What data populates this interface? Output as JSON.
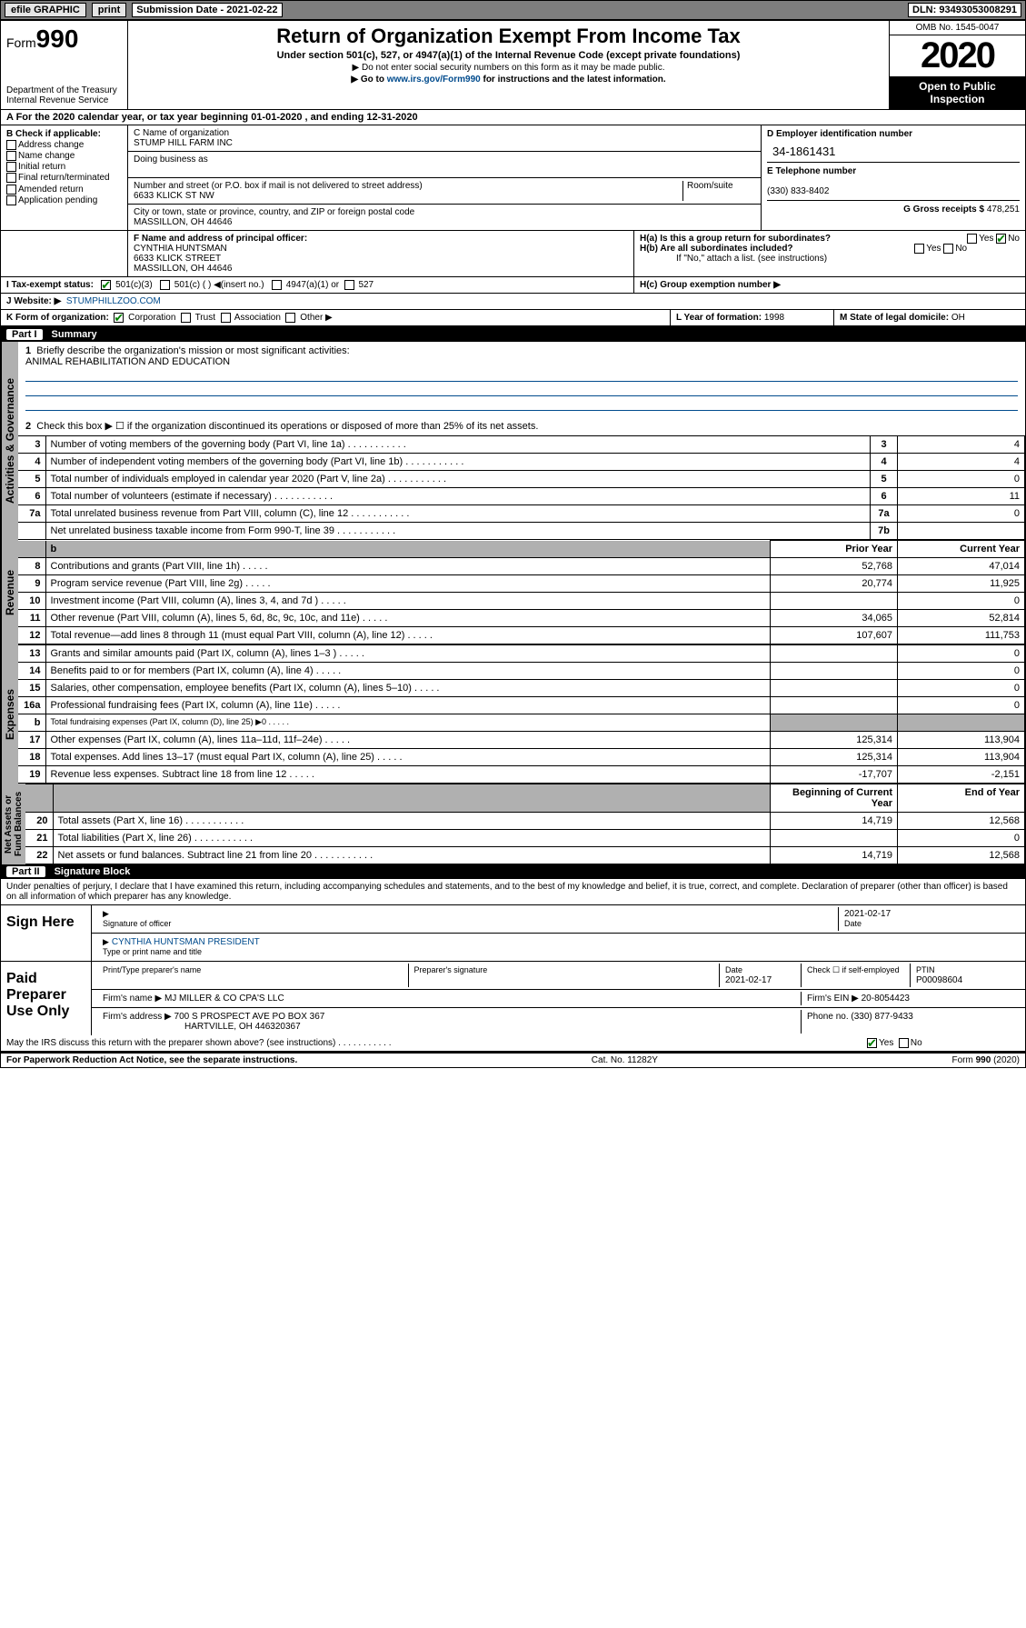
{
  "toolbar": {
    "efile": "efile GRAPHIC",
    "print": "print",
    "sub_label": "Submission Date - 2021-02-22",
    "dln": "DLN: 93493053008291"
  },
  "header": {
    "form_prefix": "Form",
    "form_no": "990",
    "title": "Return of Organization Exempt From Income Tax",
    "subtitle": "Under section 501(c), 527, or 4947(a)(1) of the Internal Revenue Code (except private foundations)",
    "note1": "▶ Do not enter social security numbers on this form as it may be made public.",
    "note2_pre": "▶ Go to ",
    "note2_link": "www.irs.gov/Form990",
    "note2_post": " for instructions and the latest information.",
    "dept": "Department of the Treasury\nInternal Revenue Service",
    "omb": "OMB No. 1545-0047",
    "year": "2020",
    "open": "Open to Public Inspection"
  },
  "row_a": "A For the 2020 calendar year, or tax year beginning 01-01-2020    , and ending 12-31-2020",
  "col_b": {
    "title": "B Check if applicable:",
    "opts": [
      "Address change",
      "Name change",
      "Initial return",
      "Final return/terminated",
      "Amended return",
      "Application pending"
    ]
  },
  "col_c": {
    "name_lbl": "C Name of organization",
    "name": "STUMP HILL FARM INC",
    "dba_lbl": "Doing business as",
    "addr_lbl": "Number and street (or P.O. box if mail is not delivered to street address)",
    "room_lbl": "Room/suite",
    "addr": "6633 KLICK ST NW",
    "city_lbl": "City or town, state or province, country, and ZIP or foreign postal code",
    "city": "MASSILLON, OH  44646"
  },
  "col_d": {
    "ein_lbl": "D Employer identification number",
    "ein": "34-1861431",
    "tel_lbl": "E Telephone number",
    "tel": "(330) 833-8402",
    "gross_lbl": "G Gross receipts $",
    "gross": "478,251"
  },
  "row_f": {
    "lbl": "F Name and address of principal officer:",
    "name": "CYNTHIA HUNTSMAN",
    "addr1": "6633 KLICK STREET",
    "addr2": "MASSILLON, OH  44646"
  },
  "row_h": {
    "ha": "H(a)  Is this a group return for subordinates?",
    "hb": "H(b)  Are all subordinates included?",
    "hb_note": "If \"No,\" attach a list. (see instructions)",
    "hc": "H(c)  Group exemption number ▶"
  },
  "row_i": {
    "lbl": "I  Tax-exempt status:",
    "a": "501(c)(3)",
    "b": "501(c) (   ) ◀(insert no.)",
    "c": "4947(a)(1) or",
    "d": "527"
  },
  "row_j": {
    "lbl": "J  Website: ▶",
    "val": "STUMPHILLZOO.COM"
  },
  "row_k": {
    "lbl": "K Form of organization:",
    "corp": "Corporation",
    "trust": "Trust",
    "assoc": "Association",
    "other": "Other ▶"
  },
  "row_l": {
    "lbl": "L Year of formation:",
    "val": "1998"
  },
  "row_m": {
    "lbl": "M State of legal domicile:",
    "val": "OH"
  },
  "part1": {
    "tag": "Part I",
    "title": "Summary"
  },
  "summary": {
    "l1": "Briefly describe the organization's mission or most significant activities:",
    "l1v": "ANIMAL REHABILITATION AND EDUCATION",
    "l2": "Check this box ▶ ☐ if the organization discontinued its operations or disposed of more than 25% of its net assets.",
    "rows": [
      {
        "n": "3",
        "t": "Number of voting members of the governing body (Part VI, line 1a)",
        "m": "3",
        "v": "4"
      },
      {
        "n": "4",
        "t": "Number of independent voting members of the governing body (Part VI, line 1b)",
        "m": "4",
        "v": "4"
      },
      {
        "n": "5",
        "t": "Total number of individuals employed in calendar year 2020 (Part V, line 2a)",
        "m": "5",
        "v": "0"
      },
      {
        "n": "6",
        "t": "Total number of volunteers (estimate if necessary)",
        "m": "6",
        "v": "11"
      },
      {
        "n": "7a",
        "t": "Total unrelated business revenue from Part VIII, column (C), line 12",
        "m": "7a",
        "v": "0"
      },
      {
        "n": "",
        "t": "Net unrelated business taxable income from Form 990-T, line 39",
        "m": "7b",
        "v": ""
      }
    ],
    "hdr_b": "b",
    "hdr_prior": "Prior Year",
    "hdr_curr": "Current Year",
    "rev": [
      {
        "n": "8",
        "t": "Contributions and grants (Part VIII, line 1h)",
        "p": "52,768",
        "c": "47,014"
      },
      {
        "n": "9",
        "t": "Program service revenue (Part VIII, line 2g)",
        "p": "20,774",
        "c": "11,925"
      },
      {
        "n": "10",
        "t": "Investment income (Part VIII, column (A), lines 3, 4, and 7d )",
        "p": "",
        "c": "0"
      },
      {
        "n": "11",
        "t": "Other revenue (Part VIII, column (A), lines 5, 6d, 8c, 9c, 10c, and 11e)",
        "p": "34,065",
        "c": "52,814"
      },
      {
        "n": "12",
        "t": "Total revenue—add lines 8 through 11 (must equal Part VIII, column (A), line 12)",
        "p": "107,607",
        "c": "111,753"
      }
    ],
    "exp": [
      {
        "n": "13",
        "t": "Grants and similar amounts paid (Part IX, column (A), lines 1–3 )",
        "p": "",
        "c": "0"
      },
      {
        "n": "14",
        "t": "Benefits paid to or for members (Part IX, column (A), line 4)",
        "p": "",
        "c": "0"
      },
      {
        "n": "15",
        "t": "Salaries, other compensation, employee benefits (Part IX, column (A), lines 5–10)",
        "p": "",
        "c": "0"
      },
      {
        "n": "16a",
        "t": "Professional fundraising fees (Part IX, column (A), line 11e)",
        "p": "",
        "c": "0"
      },
      {
        "n": "b",
        "t": "Total fundraising expenses (Part IX, column (D), line 25) ▶0",
        "p": "grey",
        "c": "grey"
      },
      {
        "n": "17",
        "t": "Other expenses (Part IX, column (A), lines 11a–11d, 11f–24e)",
        "p": "125,314",
        "c": "113,904"
      },
      {
        "n": "18",
        "t": "Total expenses. Add lines 13–17 (must equal Part IX, column (A), line 25)",
        "p": "125,314",
        "c": "113,904"
      },
      {
        "n": "19",
        "t": "Revenue less expenses. Subtract line 18 from line 12",
        "p": "-17,707",
        "c": "-2,151"
      }
    ],
    "hdr_beg": "Beginning of Current Year",
    "hdr_end": "End of Year",
    "na": [
      {
        "n": "20",
        "t": "Total assets (Part X, line 16)",
        "p": "14,719",
        "c": "12,568"
      },
      {
        "n": "21",
        "t": "Total liabilities (Part X, line 26)",
        "p": "",
        "c": "0"
      },
      {
        "n": "22",
        "t": "Net assets or fund balances. Subtract line 21 from line 20",
        "p": "14,719",
        "c": "12,568"
      }
    ]
  },
  "vtabs": {
    "ag": "Activities & Governance",
    "rev": "Revenue",
    "exp": "Expenses",
    "na": "Net Assets or\nFund Balances"
  },
  "part2": {
    "tag": "Part II",
    "title": "Signature Block"
  },
  "sig": {
    "perjury": "Under penalties of perjury, I declare that I have examined this return, including accompanying schedules and statements, and to the best of my knowledge and belief, it is true, correct, and complete. Declaration of preparer (other than officer) is based on all information of which preparer has any knowledge.",
    "sign_here": "Sign Here",
    "sig_officer": "Signature of officer",
    "date1": "2021-02-17",
    "date_lbl": "Date",
    "name_title": "CYNTHIA HUNTSMAN  PRESIDENT",
    "type_name": "Type or print name and title",
    "paid": "Paid Preparer Use Only",
    "prep_name_lbl": "Print/Type preparer's name",
    "prep_sig_lbl": "Preparer's signature",
    "date2": "2021-02-17",
    "check_se": "Check ☐ if self-employed",
    "ptin_lbl": "PTIN",
    "ptin": "P00098604",
    "firm_name_lbl": "Firm's name    ▶",
    "firm_name": "MJ MILLER & CO CPA'S LLC",
    "firm_ein_lbl": "Firm's EIN ▶",
    "firm_ein": "20-8054423",
    "firm_addr_lbl": "Firm's address ▶",
    "firm_addr": "700 S PROSPECT AVE PO BOX 367",
    "firm_city": "HARTVILLE, OH  446320367",
    "phone_lbl": "Phone no.",
    "phone": "(330) 877-9433",
    "discuss": "May the IRS discuss this return with the preparer shown above? (see instructions)",
    "yes": "Yes",
    "no": "No"
  },
  "footer": {
    "pra": "For Paperwork Reduction Act Notice, see the separate instructions.",
    "cat": "Cat. No. 11282Y",
    "form": "Form 990 (2020)"
  }
}
